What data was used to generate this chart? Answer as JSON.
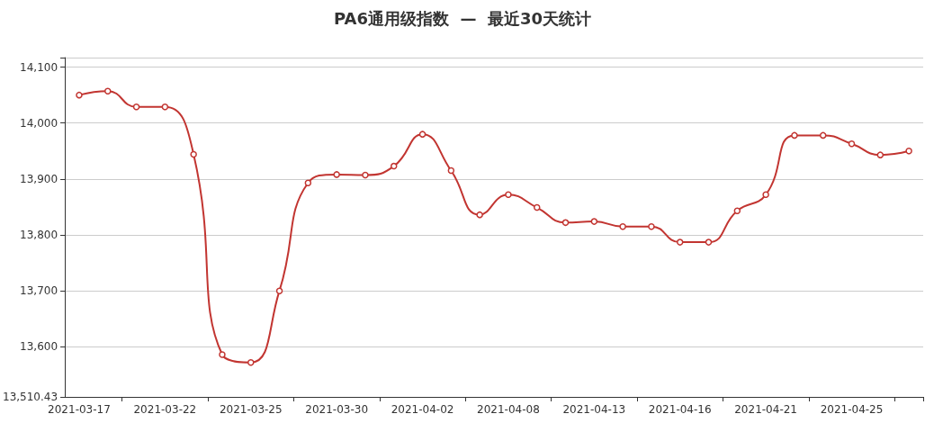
{
  "chart_data": {
    "type": "line",
    "title": "PA6通用级指数  —  最近30天统计",
    "categories": [
      "2021-03-17",
      null,
      null,
      "2021-03-22",
      null,
      null,
      "2021-03-25",
      null,
      null,
      "2021-03-30",
      null,
      null,
      "2021-04-02",
      null,
      null,
      "2021-04-08",
      null,
      null,
      "2021-04-13",
      null,
      null,
      "2021-04-16",
      null,
      null,
      "2021-04-21",
      null,
      null,
      "2021-04-25",
      null,
      null
    ],
    "series": [
      {
        "color": "#c23531",
        "values": [
          14050,
          14057,
          14029,
          14029,
          13944,
          13586,
          13572,
          13700,
          13893,
          13908,
          13907,
          13923,
          13980,
          13915,
          13836,
          13872,
          13849,
          13822,
          13824,
          13815,
          13815,
          13787,
          13787,
          13843,
          13872,
          13978,
          13978,
          13963,
          13943,
          13950
        ]
      }
    ],
    "ylim": [
      13510.43,
      14117
    ],
    "yticks": [
      {
        "value": 13510.43,
        "label": "13,510.43"
      },
      {
        "value": 13600,
        "label": "13,600"
      },
      {
        "value": 13700,
        "label": "13,700"
      },
      {
        "value": 13800,
        "label": "13,800"
      },
      {
        "value": 13900,
        "label": "13,900"
      },
      {
        "value": 14000,
        "label": "14,000"
      },
      {
        "value": 14100,
        "label": "14,100"
      },
      {
        "value": 14117,
        "label": null
      }
    ],
    "grid": "y",
    "marker": "circle",
    "line_style": "solid"
  }
}
